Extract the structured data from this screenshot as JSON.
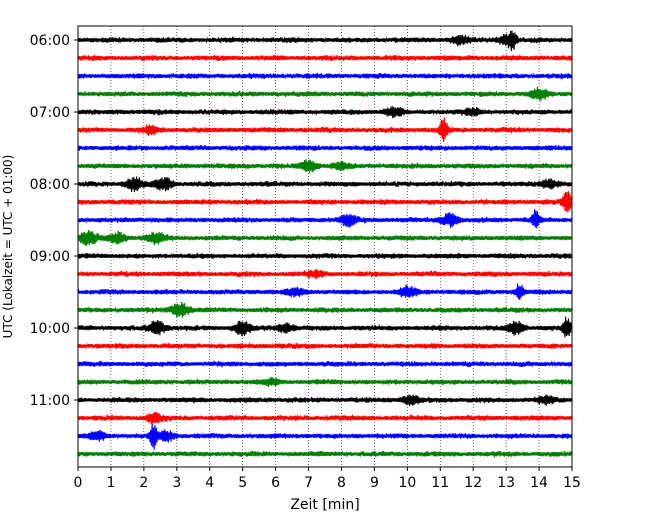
{
  "chart_data": {
    "type": "line",
    "title": "",
    "xlabel": "Zeit  [min]",
    "ylabel": "UTC (Lokalzeit = UTC + 01:00)",
    "xlim": [
      0,
      15
    ],
    "x_ticks": [
      "0",
      "1",
      "2",
      "3",
      "4",
      "5",
      "6",
      "7",
      "8",
      "9",
      "10",
      "11",
      "12",
      "13",
      "14",
      "15"
    ],
    "y_ticks": [
      "06:00",
      "07:00",
      "08:00",
      "09:00",
      "10:00",
      "11:00"
    ],
    "grid": "vertical dotted lines at each minute",
    "trace_interval_min": 15,
    "first_trace": "06:00",
    "colors": [
      "#000000",
      "#ff0000",
      "#0000ff",
      "#008000"
    ],
    "traces": [
      {
        "start": "06:00",
        "color": "#000000",
        "events": [
          {
            "t": 11.6,
            "amp": 0.35
          },
          {
            "t": 13.2,
            "amp": 0.75
          },
          {
            "t": 13.0,
            "amp": 0.4
          }
        ]
      },
      {
        "start": "06:15",
        "color": "#ff0000",
        "events": []
      },
      {
        "start": "06:30",
        "color": "#0000ff",
        "events": []
      },
      {
        "start": "06:45",
        "color": "#008000",
        "events": [
          {
            "t": 14.0,
            "amp": 0.45
          }
        ]
      },
      {
        "start": "07:00",
        "color": "#000000",
        "events": [
          {
            "t": 9.6,
            "amp": 0.4
          },
          {
            "t": 12.0,
            "amp": 0.25
          }
        ]
      },
      {
        "start": "07:15",
        "color": "#ff0000",
        "events": [
          {
            "t": 11.1,
            "amp": 1.0
          },
          {
            "t": 2.2,
            "amp": 0.3
          }
        ]
      },
      {
        "start": "07:30",
        "color": "#0000ff",
        "events": []
      },
      {
        "start": "07:45",
        "color": "#008000",
        "events": [
          {
            "t": 7.0,
            "amp": 0.45
          },
          {
            "t": 8.0,
            "amp": 0.25
          }
        ]
      },
      {
        "start": "08:00",
        "color": "#000000",
        "events": [
          {
            "t": 1.7,
            "amp": 0.55
          },
          {
            "t": 2.6,
            "amp": 0.55
          },
          {
            "t": 14.3,
            "amp": 0.35
          }
        ]
      },
      {
        "start": "08:15",
        "color": "#ff0000",
        "events": [
          {
            "t": 14.85,
            "amp": 1.1
          }
        ]
      },
      {
        "start": "08:30",
        "color": "#0000ff",
        "events": [
          {
            "t": 8.2,
            "amp": 0.45
          },
          {
            "t": 11.3,
            "amp": 0.55
          },
          {
            "t": 13.9,
            "amp": 0.8
          }
        ]
      },
      {
        "start": "08:45",
        "color": "#008000",
        "events": [
          {
            "t": 0.3,
            "amp": 0.55
          },
          {
            "t": 1.2,
            "amp": 0.45
          },
          {
            "t": 2.4,
            "amp": 0.5
          }
        ]
      },
      {
        "start": "09:00",
        "color": "#000000",
        "events": []
      },
      {
        "start": "09:15",
        "color": "#ff0000",
        "events": [
          {
            "t": 7.2,
            "amp": 0.25
          }
        ]
      },
      {
        "start": "09:30",
        "color": "#0000ff",
        "events": [
          {
            "t": 10.0,
            "amp": 0.45
          },
          {
            "t": 13.4,
            "amp": 0.75
          },
          {
            "t": 6.6,
            "amp": 0.3
          }
        ]
      },
      {
        "start": "09:45",
        "color": "#008000",
        "events": [
          {
            "t": 3.1,
            "amp": 0.6
          }
        ]
      },
      {
        "start": "10:00",
        "color": "#000000",
        "events": [
          {
            "t": 2.4,
            "amp": 0.55
          },
          {
            "t": 5.0,
            "amp": 0.55
          },
          {
            "t": 6.3,
            "amp": 0.35
          },
          {
            "t": 13.3,
            "amp": 0.55
          },
          {
            "t": 14.85,
            "amp": 0.95
          }
        ]
      },
      {
        "start": "10:15",
        "color": "#ff0000",
        "events": []
      },
      {
        "start": "10:30",
        "color": "#0000ff",
        "events": []
      },
      {
        "start": "10:45",
        "color": "#008000",
        "events": [
          {
            "t": 5.9,
            "amp": 0.25
          }
        ]
      },
      {
        "start": "11:00",
        "color": "#000000",
        "events": [
          {
            "t": 10.1,
            "amp": 0.35
          },
          {
            "t": 14.2,
            "amp": 0.3
          }
        ]
      },
      {
        "start": "11:15",
        "color": "#ff0000",
        "events": [
          {
            "t": 2.3,
            "amp": 0.4
          }
        ]
      },
      {
        "start": "11:30",
        "color": "#0000ff",
        "events": [
          {
            "t": 2.3,
            "amp": 1.0
          },
          {
            "t": 0.6,
            "amp": 0.35
          },
          {
            "t": 2.7,
            "amp": 0.4
          }
        ]
      },
      {
        "start": "11:45",
        "color": "#008000",
        "events": []
      }
    ]
  }
}
